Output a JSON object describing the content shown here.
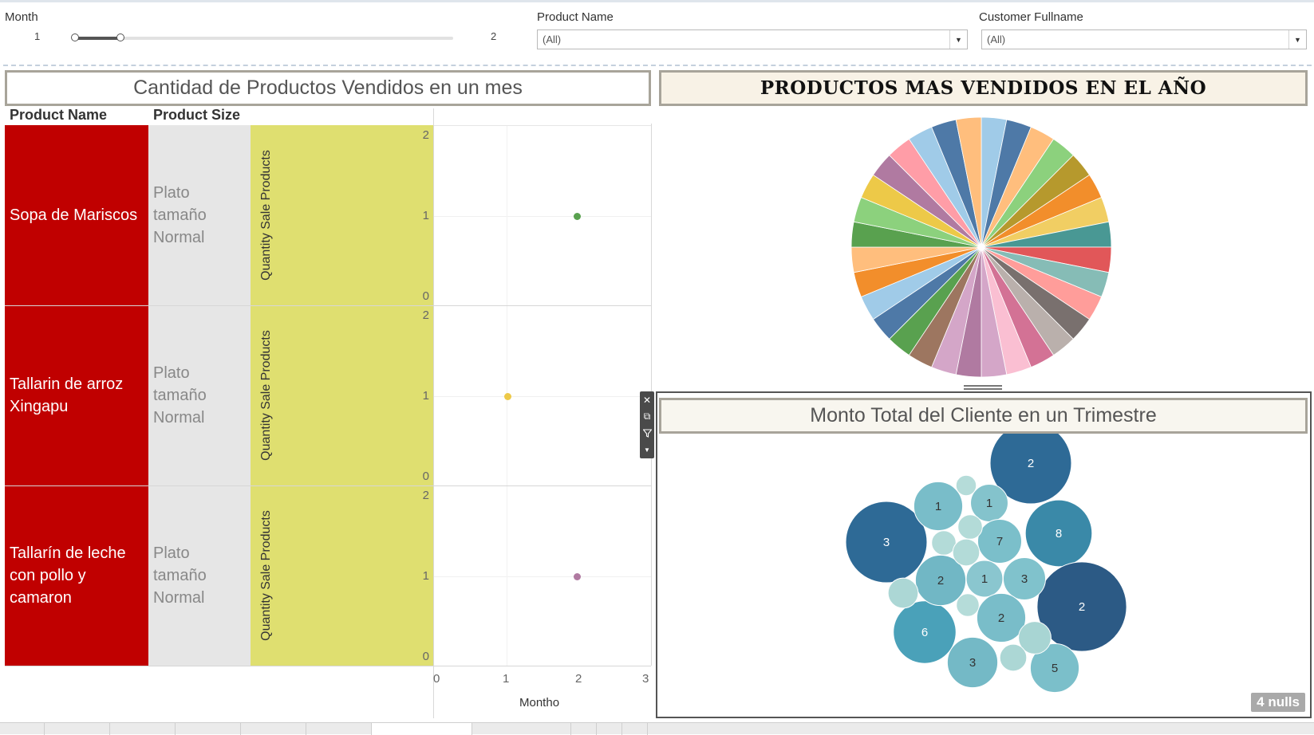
{
  "filters": {
    "month": {
      "label": "Month",
      "min": "1",
      "max": "2",
      "value": 0.12
    },
    "product_name": {
      "label": "Product Name",
      "value": "(All)"
    },
    "customer_fullname": {
      "label": "Customer Fullname",
      "value": "(All)"
    }
  },
  "left_panel": {
    "title": "Cantidad de Productos Vendidos en un mes",
    "columns": {
      "product": "Product Name",
      "size": "Product Size"
    },
    "axis_title": "Quantity Sale Products",
    "y_ticks": [
      "2",
      "1",
      "0"
    ],
    "x_ticks": [
      "0",
      "1",
      "2",
      "3"
    ],
    "x_title": "Montho",
    "rows": [
      {
        "product": "Sopa de Mariscos",
        "size": "Plato tamaño Normal",
        "x": 2,
        "y": 1,
        "color": "#59a14f"
      },
      {
        "product": "Tallarin de arroz Xingapu",
        "size": "Plato tamaño Normal",
        "x": 1,
        "y": 1,
        "color": "#edc948"
      },
      {
        "product": "Tallarín de leche con pollo y camaron",
        "size": "Plato tamaño Normal",
        "x": 2,
        "y": 1,
        "color": "#b07aa1"
      }
    ]
  },
  "pie_panel": {
    "title": "PRODUCTOS MAS VENDIDOS EN EL AÑO"
  },
  "chart_data": [
    {
      "type": "pie",
      "title": "PRODUCTOS MAS VENDIDOS EN EL AÑO",
      "slices": [
        1,
        1,
        1,
        1,
        1,
        1,
        1,
        1,
        1,
        1,
        1,
        1,
        1,
        1,
        1,
        1,
        1,
        1,
        1,
        1,
        1,
        1,
        1,
        1,
        1,
        1,
        1,
        1,
        1,
        1,
        1,
        1
      ],
      "colors": [
        "#a0cbe8",
        "#4e79a7",
        "#ffbe7d",
        "#8cd17d",
        "#b6992d",
        "#f28e2b",
        "#f1ce63",
        "#499894",
        "#e15759",
        "#86bcb6",
        "#ff9d9a",
        "#79706e",
        "#bab0ac",
        "#d37295",
        "#fabfd2",
        "#d4a6c8",
        "#b07aa1",
        "#d4a6c8",
        "#9d7660",
        "#59a14f",
        "#4e79a7",
        "#a0cbe8",
        "#f28e2b",
        "#ffbe7d",
        "#59a14f",
        "#8cd17d",
        "#edc948",
        "#b07aa1",
        "#ff9da7",
        "#a0cbe8",
        "#4e79a7",
        "#ffbe7d"
      ]
    },
    {
      "type": "scatter",
      "title": "Monto Total del Cliente en un Trimestre",
      "bubbles": [
        {
          "label": "2",
          "size": 1.0,
          "color": "#2e6a96"
        },
        {
          "label": "3",
          "size": 1.0,
          "color": "#2e6a96"
        },
        {
          "label": "8",
          "size": 0.82,
          "color": "#3a89a8"
        },
        {
          "label": "2",
          "size": 1.1,
          "color": "#2c5a85"
        },
        {
          "label": "6",
          "size": 0.77,
          "color": "#4aa1b9"
        },
        {
          "label": "1",
          "size": 0.6,
          "color": "#79bdc9"
        },
        {
          "label": "1",
          "size": 0.46,
          "color": "#84c3cc"
        },
        {
          "label": "7",
          "size": 0.54,
          "color": "#7bbfca"
        },
        {
          "label": "2",
          "size": 0.62,
          "color": "#71b7c5"
        },
        {
          "label": "1",
          "size": 0.45,
          "color": "#8ac6cf"
        },
        {
          "label": "3",
          "size": 0.52,
          "color": "#80c2cc"
        },
        {
          "label": "2",
          "size": 0.6,
          "color": "#79bdc9"
        },
        {
          "label": "3",
          "size": 0.62,
          "color": "#74b9c6"
        },
        {
          "label": "5",
          "size": 0.6,
          "color": "#7bbfca"
        },
        {
          "label": "",
          "size": 0.25,
          "color": "#b5dcd9"
        },
        {
          "label": "",
          "size": 0.3,
          "color": "#b3dbd8"
        },
        {
          "label": "",
          "size": 0.3,
          "color": "#b3dbd8"
        },
        {
          "label": "",
          "size": 0.33,
          "color": "#b3dbd8"
        },
        {
          "label": "",
          "size": 0.37,
          "color": "#acd7d5"
        },
        {
          "label": "",
          "size": 0.28,
          "color": "#b5dcd9"
        },
        {
          "label": "",
          "size": 0.4,
          "color": "#a8d5d3"
        },
        {
          "label": "",
          "size": 0.33,
          "color": "#acd7d5"
        }
      ]
    }
  ],
  "bubble_panel": {
    "title": "Monto Total del Cliente en un Trimestre",
    "nulls": "4 nulls"
  },
  "toolbar": {
    "icons": [
      "close-icon",
      "popout-icon",
      "filter-icon",
      "more-icon"
    ]
  }
}
